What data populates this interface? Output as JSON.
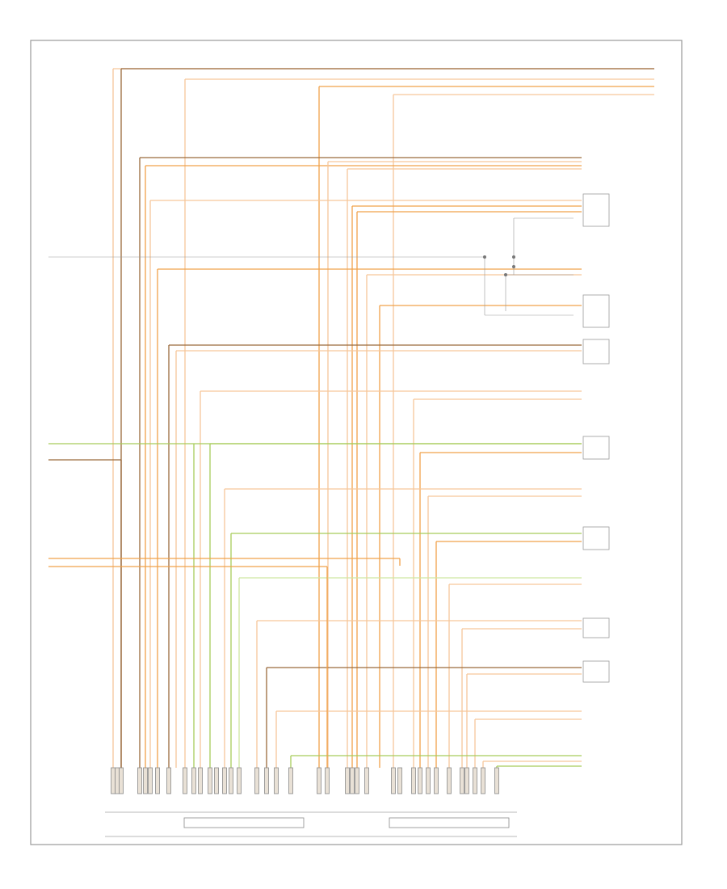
{
  "diagram": {
    "figure_code": "",
    "components": [
      {
        "label": ""
      },
      {
        "label": ""
      },
      {
        "label": ""
      },
      {
        "label": ""
      },
      {
        "label": ""
      },
      {
        "label": ""
      },
      {
        "label": ""
      },
      {
        "label": ""
      },
      {
        "label": ""
      },
      {
        "label": ""
      },
      {
        "label": ""
      },
      {
        "label": ""
      },
      {
        "label": ""
      },
      {
        "label": ""
      }
    ],
    "connector_blocks": [
      {
        "label": ""
      },
      {
        "label": ""
      },
      {
        "label": ""
      },
      {
        "label": ""
      }
    ],
    "main_module": {
      "label": ""
    },
    "wire_colors": {
      "orange": "#F0A24A",
      "light_orange": "#F6C79A",
      "brown": "#9A6A3C",
      "green": "#A8CC5A",
      "light_green": "#CFE6A2",
      "gray": "#9A9A9A"
    }
  }
}
